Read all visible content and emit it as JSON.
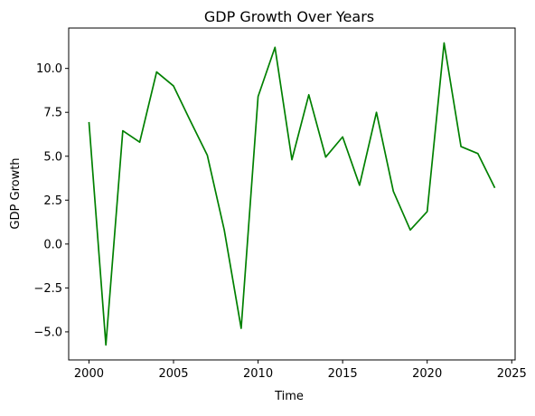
{
  "chart_data": {
    "type": "line",
    "title": "GDP Growth Over Years",
    "xlabel": "Time",
    "ylabel": "GDP Growth",
    "xlim": [
      1998.8,
      2025.2
    ],
    "ylim": [
      -6.6,
      12.3
    ],
    "xticks": [
      2000,
      2005,
      2010,
      2015,
      2020,
      2025
    ],
    "xtick_labels": [
      "2000",
      "2005",
      "2010",
      "2015",
      "2020",
      "2025"
    ],
    "yticks": [
      -5.0,
      -2.5,
      0.0,
      2.5,
      5.0,
      7.5,
      10.0
    ],
    "ytick_labels": [
      "−5.0",
      "−2.5",
      "0.0",
      "2.5",
      "5.0",
      "7.5",
      "10.0"
    ],
    "grid": false,
    "series": [
      {
        "color": "#008000",
        "x": [
          2000,
          2001,
          2002,
          2003,
          2004,
          2005,
          2006,
          2007,
          2008,
          2009,
          2010,
          2011,
          2012,
          2013,
          2014,
          2015,
          2016,
          2017,
          2018,
          2019,
          2020,
          2021,
          2022,
          2023,
          2024
        ],
        "y": [
          6.95,
          -5.75,
          6.45,
          5.8,
          9.8,
          9.0,
          7.0,
          5.05,
          0.8,
          -4.8,
          8.4,
          11.2,
          4.8,
          8.5,
          4.95,
          6.1,
          3.35,
          7.5,
          3.0,
          0.8,
          1.85,
          11.45,
          5.55,
          5.15,
          3.2
        ]
      }
    ]
  }
}
